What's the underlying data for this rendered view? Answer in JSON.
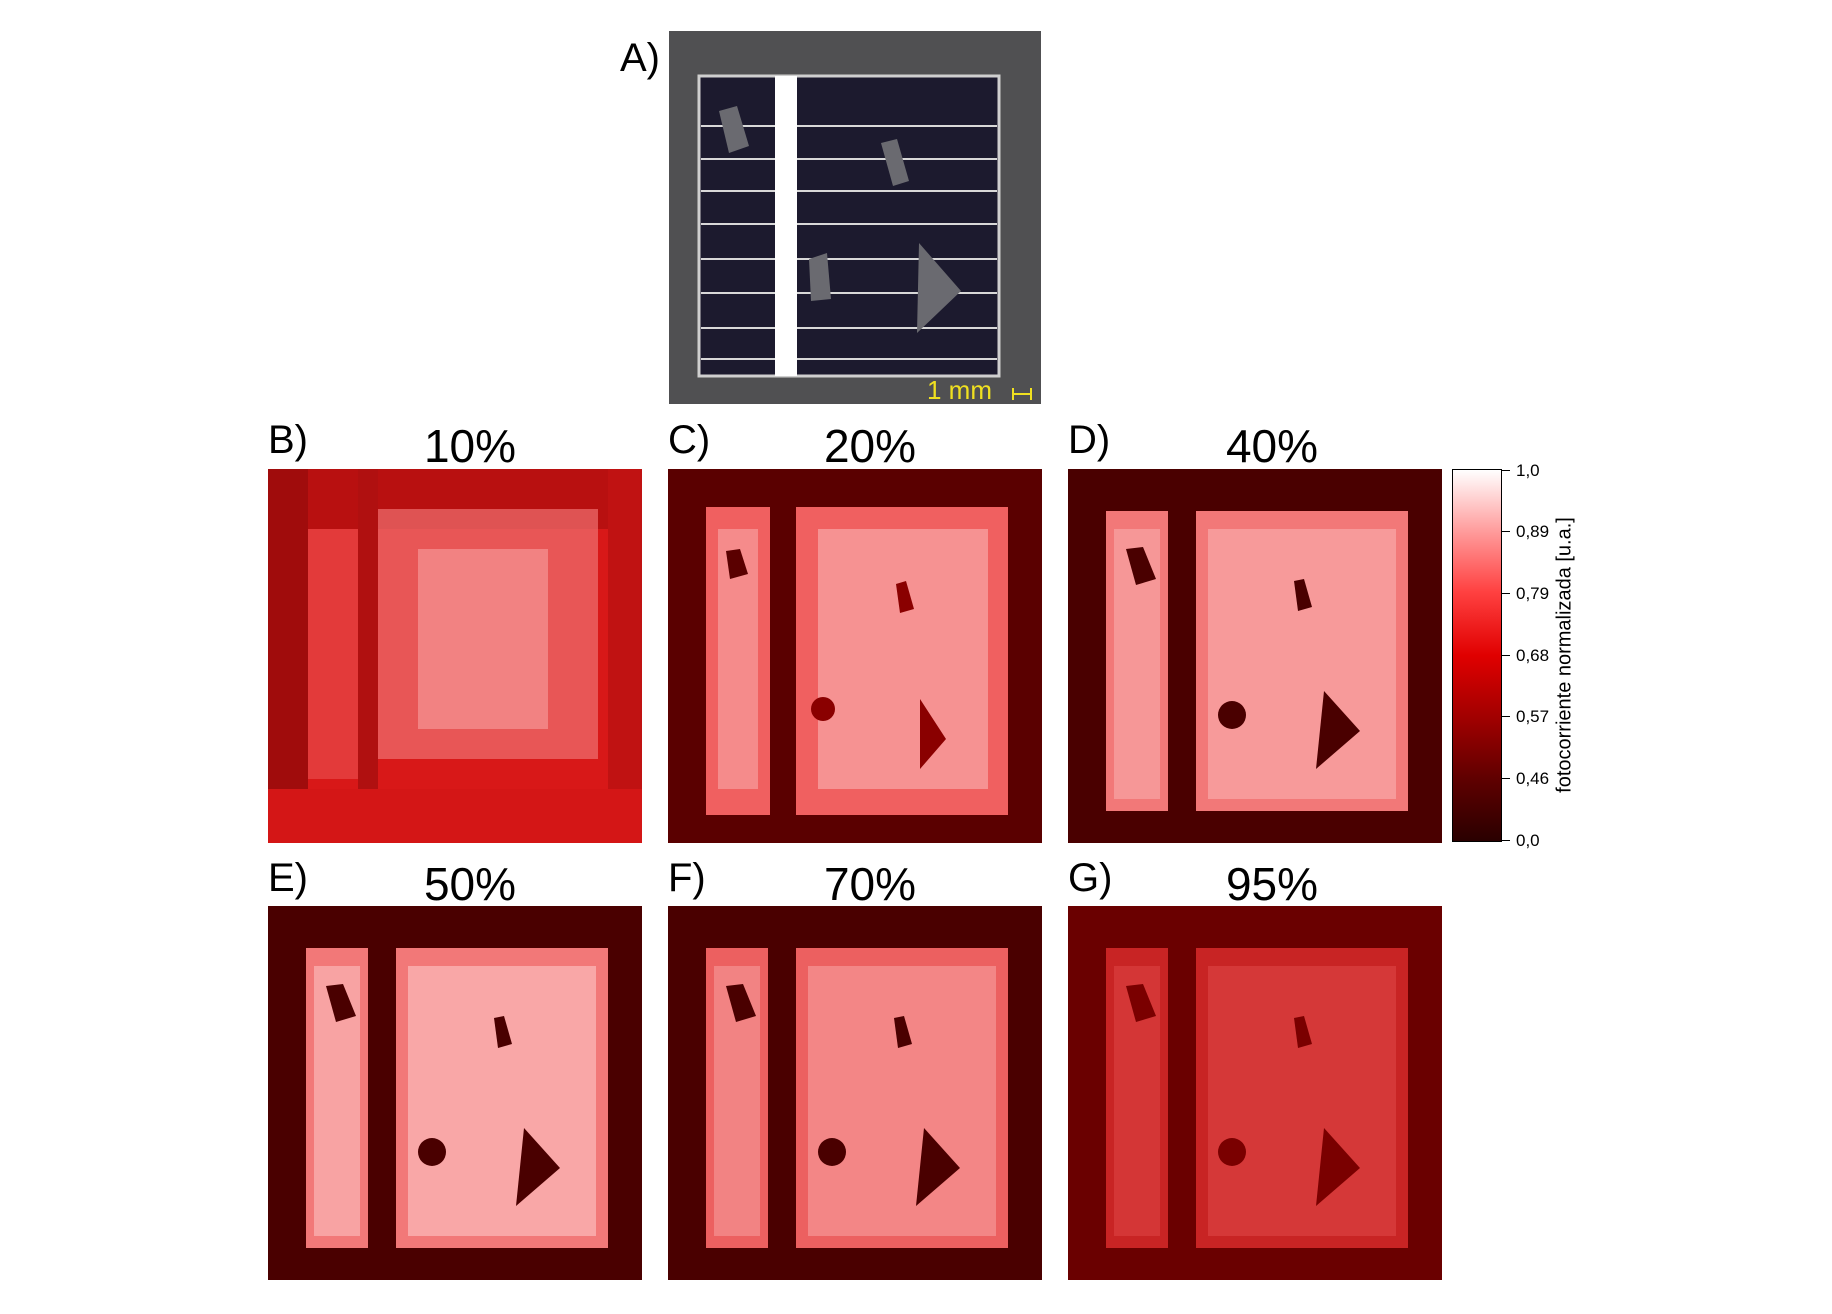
{
  "panel_a": {
    "letter": "A)",
    "scale_label": "1 mm"
  },
  "panels": [
    {
      "letter": "B)",
      "percent": "10%"
    },
    {
      "letter": "C)",
      "percent": "20%"
    },
    {
      "letter": "D)",
      "percent": "40%"
    },
    {
      "letter": "E)",
      "percent": "50%"
    },
    {
      "letter": "F)",
      "percent": "70%"
    },
    {
      "letter": "G)",
      "percent": "95%"
    }
  ],
  "colorbar": {
    "title": "fotocorriente normalizada [u.a.]",
    "ticks": [
      "1,0",
      "0,89",
      "0,79",
      "0,68",
      "0,57",
      "0,46",
      "0,0"
    ],
    "colors": [
      "#ffffff",
      "#ff9999",
      "#ff4040",
      "#e00000",
      "#a00000",
      "#600000",
      "#2a0000"
    ]
  }
}
